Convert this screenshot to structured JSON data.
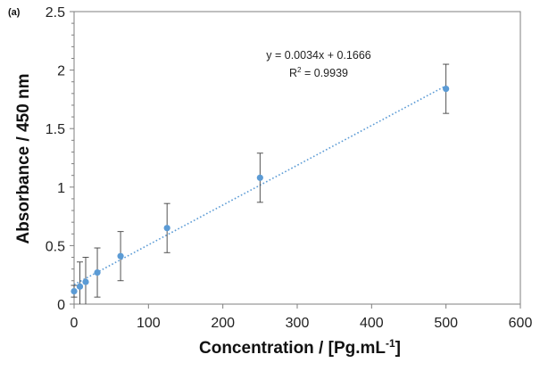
{
  "chart_data": {
    "type": "scatter",
    "panel_label": "(a)",
    "title": "",
    "xlabel": {
      "main": "Concentration / [Pg.mL",
      "sup": "-1",
      "close": "]"
    },
    "ylabel": "Absorbance / 450 nm",
    "xlim": [
      0,
      600
    ],
    "ylim": [
      0,
      2.5
    ],
    "x_ticks": [
      "0",
      "100",
      "200",
      "300",
      "400",
      "500",
      "600"
    ],
    "y_ticks": [
      "0",
      "0.5",
      "1",
      "1.5",
      "2",
      "2.5"
    ],
    "grid": false,
    "series": [
      {
        "x": [
          0,
          7.8,
          15.6,
          31.25,
          62.5,
          125,
          250,
          500
        ],
        "y": [
          0.11,
          0.15,
          0.19,
          0.27,
          0.41,
          0.65,
          1.08,
          1.84
        ],
        "error": [
          0.05,
          0.21,
          0.21,
          0.21,
          0.21,
          0.21,
          0.21,
          0.21
        ],
        "color": "#5b9bd5"
      }
    ],
    "trendline": {
      "slope": 0.0034,
      "intercept": 0.1666,
      "x_range": [
        0,
        500
      ],
      "style": "dotted",
      "color": "#5b9bd5"
    },
    "annotations": {
      "equation": "y = 0.0034x + 0.1666",
      "r2_main": "R",
      "r2_sup": "2",
      "r2_value": " = 0.9939"
    }
  }
}
